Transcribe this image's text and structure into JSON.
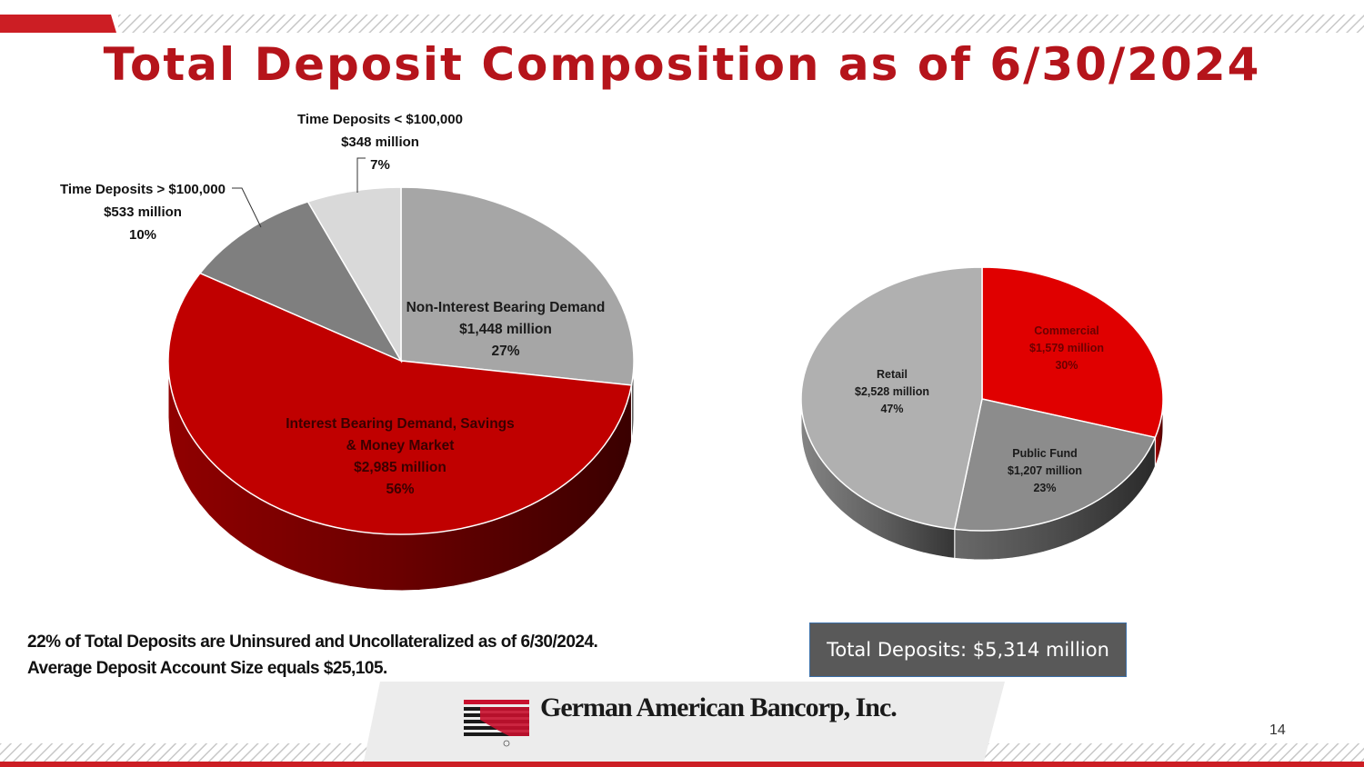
{
  "title": "Total Deposit Composition as of 6/30/2024",
  "colors": {
    "brand_red": "#b5141b",
    "slice_red": "#c00000",
    "slice_light_gray": "#a6a6a6",
    "slice_dark_gray": "#7f7f7f",
    "slice_pale_gray": "#d9d9d9",
    "commercial_red": "#e00000",
    "public_fund_gray": "#8c8c8c",
    "retail_gray": "#b0b0b0",
    "total_box": "#595959"
  },
  "chart_data": [
    {
      "type": "pie",
      "slices": [
        {
          "label": "Non-Interest Bearing Demand",
          "value": 1448,
          "value_label": "$1,448 million",
          "percent": 27,
          "percent_label": "27%",
          "color": "#a6a6a6"
        },
        {
          "label": "Interest Bearing Demand, Savings & Money Market",
          "label_lines": [
            "Interest Bearing Demand, Savings",
            "& Money Market"
          ],
          "value": 2985,
          "value_label": "$2,985 million",
          "percent": 56,
          "percent_label": "56%",
          "color": "#c00000"
        },
        {
          "label": "Time Deposits > $100,000",
          "value": 533,
          "value_label": "$533 million",
          "percent": 10,
          "percent_label": "10%",
          "color": "#7f7f7f"
        },
        {
          "label": "Time Deposits < $100,000",
          "value": 348,
          "value_label": "$348 million",
          "percent": 7,
          "percent_label": "7%",
          "color": "#d9d9d9"
        }
      ]
    },
    {
      "type": "pie",
      "slices": [
        {
          "label": "Commercial",
          "value": 1579,
          "value_label": "$1,579 million",
          "percent": 30,
          "percent_label": "30%",
          "color": "#e00000"
        },
        {
          "label": "Public Fund",
          "value": 1207,
          "value_label": "$1,207 million",
          "percent": 23,
          "percent_label": "23%",
          "color": "#8c8c8c"
        },
        {
          "label": "Retail",
          "value": 2528,
          "value_label": "$2,528 million",
          "percent": 47,
          "percent_label": "47%",
          "color": "#b0b0b0"
        }
      ]
    }
  ],
  "note": "22% of Total Deposits are Uninsured and Uncollateralized as of 6/30/2024.   Average Deposit Account Size equals $25,105.",
  "total_box": "Total Deposits: $5,314 million",
  "logo": {
    "name": "German American Bancorp, Inc."
  },
  "page_number": "14"
}
